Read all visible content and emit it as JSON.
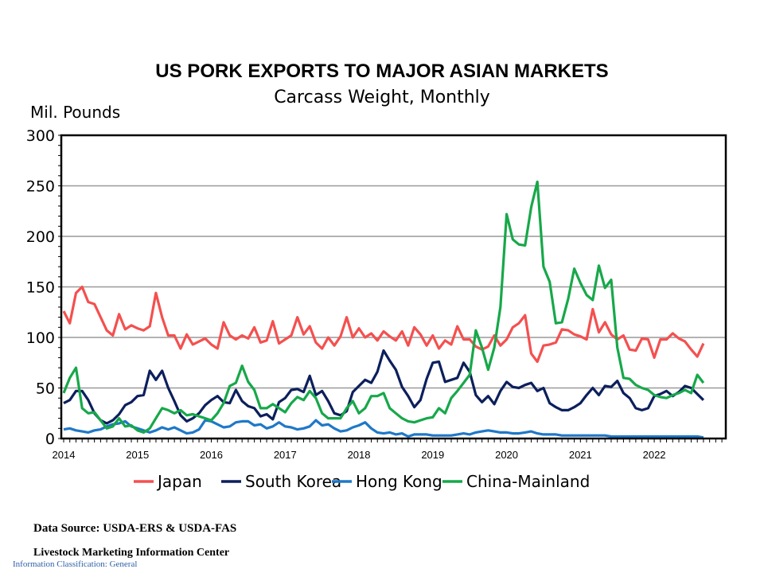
{
  "chart_data": {
    "type": "line",
    "title": "US PORK EXPORTS TO MAJOR ASIAN MARKETS",
    "subtitle": "Carcass Weight, Monthly",
    "ylabel": "Mil. Pounds",
    "xlabel": "",
    "ylim": [
      0,
      300
    ],
    "yticks": [
      "0",
      "50",
      "100",
      "150",
      "200",
      "250",
      "300"
    ],
    "xticks": [
      "2014",
      "2015",
      "2016",
      "2017",
      "2018",
      "2019",
      "2020",
      "2021",
      "2022"
    ],
    "x_start": "2014-01",
    "x_end": "2022-09",
    "frequency": "monthly",
    "grid": true,
    "legend": "bottom",
    "series": [
      {
        "name": "Japan",
        "color": "#f4504f",
        "values": [
          126,
          114,
          144,
          150,
          135,
          133,
          120,
          107,
          102,
          123,
          108,
          112,
          109,
          107,
          111,
          144,
          120,
          102,
          102,
          89,
          103,
          93,
          96,
          99,
          93,
          89,
          115,
          102,
          98,
          102,
          99,
          110,
          95,
          97,
          116,
          94,
          98,
          102,
          120,
          103,
          111,
          95,
          89,
          100,
          92,
          101,
          120,
          100,
          109,
          100,
          104,
          97,
          106,
          101,
          97,
          106,
          92,
          110,
          103,
          92,
          102,
          89,
          97,
          93,
          111,
          98,
          98,
          91,
          88,
          91,
          102,
          92,
          98,
          110,
          114,
          122,
          84,
          76,
          92,
          93,
          95,
          108,
          107,
          103,
          101,
          98,
          128,
          105,
          115,
          103,
          98,
          102,
          88,
          87,
          99,
          98,
          80,
          98,
          98,
          104,
          99,
          96,
          88,
          81,
          94
        ]
      },
      {
        "name": "South Korea",
        "color": "#0c1f5c",
        "values": [
          35,
          38,
          47,
          47,
          38,
          25,
          18,
          15,
          18,
          24,
          33,
          36,
          42,
          43,
          67,
          58,
          67,
          50,
          37,
          23,
          17,
          20,
          25,
          33,
          38,
          42,
          36,
          35,
          48,
          37,
          32,
          30,
          22,
          24,
          19,
          36,
          40,
          48,
          49,
          46,
          62,
          43,
          47,
          37,
          25,
          23,
          27,
          46,
          52,
          58,
          55,
          66,
          87,
          77,
          68,
          51,
          42,
          31,
          38,
          59,
          75,
          76,
          56,
          58,
          60,
          75,
          66,
          43,
          36,
          42,
          34,
          47,
          56,
          51,
          50,
          53,
          55,
          47,
          50,
          35,
          31,
          28,
          28,
          31,
          35,
          43,
          50,
          43,
          52,
          51,
          57,
          45,
          40,
          30,
          28,
          30,
          42,
          44,
          47,
          42,
          46,
          52,
          50,
          44,
          38
        ]
      },
      {
        "name": "Hong Kong",
        "color": "#1f78c8",
        "values": [
          9,
          10,
          8,
          7,
          6,
          8,
          9,
          12,
          14,
          15,
          17,
          12,
          10,
          8,
          6,
          8,
          11,
          9,
          11,
          8,
          5,
          6,
          9,
          18,
          17,
          14,
          11,
          12,
          16,
          17,
          17,
          13,
          14,
          10,
          12,
          16,
          12,
          11,
          9,
          10,
          12,
          18,
          13,
          14,
          10,
          7,
          8,
          11,
          13,
          16,
          10,
          6,
          5,
          6,
          4,
          5,
          2,
          4,
          4,
          4,
          3,
          3,
          3,
          3,
          4,
          5,
          4,
          6,
          7,
          8,
          7,
          6,
          6,
          5,
          5,
          6,
          7,
          5,
          4,
          4,
          4,
          3,
          3,
          3,
          3,
          3,
          3,
          3,
          3,
          2,
          2,
          2,
          2,
          2,
          2,
          2,
          2,
          2,
          2,
          2,
          2,
          2,
          2,
          2,
          1
        ]
      },
      {
        "name": "China-Mainland",
        "color": "#17a84a",
        "values": [
          45,
          60,
          70,
          30,
          25,
          26,
          18,
          10,
          12,
          20,
          12,
          13,
          8,
          6,
          10,
          20,
          30,
          28,
          25,
          28,
          23,
          24,
          22,
          20,
          18,
          25,
          35,
          52,
          55,
          72,
          56,
          48,
          30,
          30,
          34,
          30,
          26,
          35,
          41,
          38,
          47,
          40,
          25,
          20,
          20,
          20,
          30,
          37,
          25,
          30,
          42,
          42,
          45,
          30,
          25,
          20,
          17,
          16,
          18,
          20,
          21,
          30,
          25,
          40,
          47,
          55,
          63,
          107,
          90,
          68,
          90,
          130,
          222,
          197,
          192,
          191,
          229,
          254,
          170,
          155,
          114,
          115,
          138,
          168,
          154,
          142,
          137,
          171,
          149,
          157,
          90,
          60,
          59,
          53,
          50,
          48,
          43,
          41,
          40,
          43,
          45,
          48,
          45,
          63,
          55
        ]
      }
    ]
  },
  "footer": {
    "source": "Data Source:  USDA-ERS & USDA-FAS",
    "center": "Livestock Marketing Information  Center",
    "classification": "Information Classification: General"
  }
}
